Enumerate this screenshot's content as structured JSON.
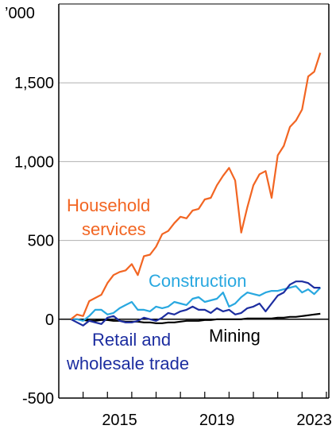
{
  "chart_data": {
    "type": "line",
    "unit_label": "’000",
    "ylim": [
      -500,
      2000
    ],
    "y_ticks": [
      {
        "value": 2000,
        "label": ""
      },
      {
        "value": 1500,
        "label": "1,500"
      },
      {
        "value": 1000,
        "label": "1,000"
      },
      {
        "value": 500,
        "label": "500"
      },
      {
        "value": 0,
        "label": "0"
      },
      {
        "value": -500,
        "label": "-500"
      }
    ],
    "xlim": [
      2013.0,
      2024.1
    ],
    "x_tick_labels": [
      {
        "value": 2015.5,
        "label": "2015"
      },
      {
        "value": 2019.5,
        "label": "2019"
      },
      {
        "value": 2023.5,
        "label": "2023"
      }
    ],
    "x_minor_ticks": [
      2014,
      2015,
      2016,
      2017,
      2018,
      2019,
      2020,
      2021,
      2022,
      2023,
      2024
    ],
    "grid": true,
    "colors": {
      "household": "#f26522",
      "construction": "#29a8e0",
      "retail": "#1c2da0",
      "mining": "#000000",
      "grid": "#b0b0b0",
      "axis": "#000000"
    },
    "series": [
      {
        "name": "Household services",
        "label_lines": [
          "Household",
          "services"
        ],
        "color": "#f26522",
        "x": [
          2013.5,
          2013.75,
          2014.0,
          2014.25,
          2014.5,
          2014.75,
          2015.0,
          2015.25,
          2015.5,
          2015.75,
          2016.0,
          2016.25,
          2016.5,
          2016.75,
          2017.0,
          2017.25,
          2017.5,
          2017.75,
          2018.0,
          2018.25,
          2018.5,
          2018.75,
          2019.0,
          2019.25,
          2019.5,
          2019.75,
          2020.0,
          2020.25,
          2020.5,
          2020.75,
          2021.0,
          2021.25,
          2021.5,
          2021.75,
          2022.0,
          2022.25,
          2022.5,
          2022.75,
          2023.0,
          2023.25,
          2023.5,
          2023.75
        ],
        "y": [
          0,
          30,
          20,
          115,
          135,
          155,
          230,
          280,
          300,
          310,
          350,
          280,
          400,
          410,
          460,
          540,
          560,
          610,
          650,
          640,
          690,
          700,
          760,
          770,
          850,
          910,
          960,
          880,
          550,
          710,
          850,
          920,
          940,
          770,
          1040,
          1100,
          1220,
          1260,
          1330,
          1540,
          1570,
          1690
        ]
      },
      {
        "name": "Construction",
        "color": "#29a8e0",
        "x": [
          2013.5,
          2013.75,
          2014.0,
          2014.25,
          2014.5,
          2014.75,
          2015.0,
          2015.25,
          2015.5,
          2015.75,
          2016.0,
          2016.25,
          2016.5,
          2016.75,
          2017.0,
          2017.25,
          2017.5,
          2017.75,
          2018.0,
          2018.25,
          2018.5,
          2018.75,
          2019.0,
          2019.25,
          2019.5,
          2019.75,
          2020.0,
          2020.25,
          2020.5,
          2020.75,
          2021.0,
          2021.25,
          2021.5,
          2021.75,
          2022.0,
          2022.25,
          2022.5,
          2022.75,
          2023.0,
          2023.25,
          2023.5,
          2023.75
        ],
        "y": [
          0,
          0,
          -10,
          20,
          60,
          60,
          30,
          40,
          70,
          90,
          110,
          60,
          60,
          50,
          80,
          70,
          80,
          110,
          100,
          90,
          130,
          140,
          110,
          120,
          130,
          170,
          80,
          100,
          140,
          170,
          160,
          150,
          170,
          180,
          180,
          190,
          200,
          210,
          170,
          190,
          160,
          200
        ]
      },
      {
        "name": "Retail and wholesale trade",
        "label_lines": [
          "Retail and",
          "wholesale trade"
        ],
        "color": "#1c2da0",
        "x": [
          2013.5,
          2013.75,
          2014.0,
          2014.25,
          2014.5,
          2014.75,
          2015.0,
          2015.25,
          2015.5,
          2015.75,
          2016.0,
          2016.25,
          2016.5,
          2016.75,
          2017.0,
          2017.25,
          2017.5,
          2017.75,
          2018.0,
          2018.25,
          2018.5,
          2018.75,
          2019.0,
          2019.25,
          2019.5,
          2019.75,
          2020.0,
          2020.25,
          2020.5,
          2020.75,
          2021.0,
          2021.25,
          2021.5,
          2021.75,
          2022.0,
          2022.25,
          2022.5,
          2022.75,
          2023.0,
          2023.25,
          2023.5,
          2023.75
        ],
        "y": [
          0,
          -20,
          -40,
          -10,
          -20,
          -30,
          10,
          20,
          -10,
          -20,
          -20,
          -10,
          10,
          0,
          -10,
          10,
          40,
          30,
          50,
          60,
          80,
          60,
          60,
          40,
          70,
          50,
          60,
          30,
          40,
          70,
          80,
          100,
          50,
          100,
          150,
          170,
          220,
          240,
          240,
          230,
          200,
          200
        ]
      },
      {
        "name": "Mining",
        "color": "#000000",
        "x": [
          2013.5,
          2013.75,
          2014.0,
          2014.25,
          2014.5,
          2014.75,
          2015.0,
          2015.25,
          2015.5,
          2015.75,
          2016.0,
          2016.25,
          2016.5,
          2016.75,
          2017.0,
          2017.25,
          2017.5,
          2017.75,
          2018.0,
          2018.25,
          2018.5,
          2018.75,
          2019.0,
          2019.25,
          2019.5,
          2019.75,
          2020.0,
          2020.25,
          2020.5,
          2020.75,
          2021.0,
          2021.25,
          2021.5,
          2021.75,
          2022.0,
          2022.25,
          2022.5,
          2022.75,
          2023.0,
          2023.25,
          2023.5,
          2023.75
        ],
        "y": [
          0,
          0,
          -5,
          -10,
          -10,
          -5,
          -5,
          -10,
          -10,
          -15,
          -15,
          -15,
          -20,
          -20,
          -25,
          -25,
          -20,
          -20,
          -15,
          -10,
          -10,
          -10,
          -5,
          -5,
          0,
          0,
          0,
          0,
          0,
          5,
          5,
          5,
          5,
          5,
          10,
          10,
          15,
          15,
          20,
          25,
          30,
          35
        ]
      }
    ]
  }
}
